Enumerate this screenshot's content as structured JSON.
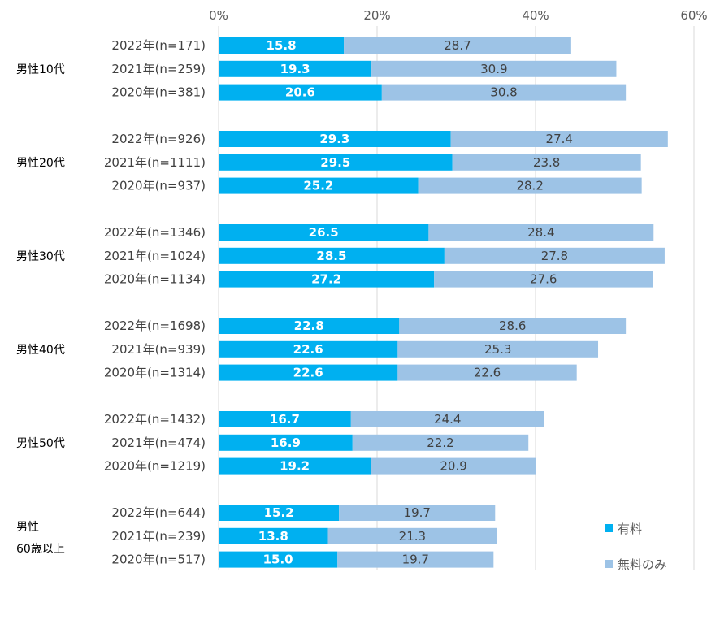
{
  "chart_data": {
    "type": "bar",
    "orientation": "horizontal",
    "stacked": true,
    "title": "",
    "xlabel": "",
    "ylabel": "",
    "xlim": [
      0,
      60
    ],
    "x_ticks": [
      "0%",
      "20%",
      "40%",
      "60%"
    ],
    "x_tick_values": [
      0,
      20,
      40,
      60
    ],
    "grid": true,
    "legend_position": "bottom-right",
    "colors": {
      "paid": "#00B0F0",
      "free": "#9DC3E6",
      "grid": "#D9D9D9"
    },
    "series": [
      {
        "key": "paid",
        "name": "有料"
      },
      {
        "key": "free",
        "name": "無料のみ"
      }
    ],
    "groups": [
      {
        "label": [
          "男性10代"
        ],
        "rows": [
          {
            "label": "2022年(n=171)",
            "paid": 15.8,
            "paid_text": "15.8",
            "free": 28.7,
            "free_text": "28.7"
          },
          {
            "label": "2021年(n=259)",
            "paid": 19.3,
            "paid_text": "19.3",
            "free": 30.9,
            "free_text": "30.9"
          },
          {
            "label": "2020年(n=381)",
            "paid": 20.6,
            "paid_text": "20.6",
            "free": 30.8,
            "free_text": "30.8"
          }
        ]
      },
      {
        "label": [
          "男性20代"
        ],
        "rows": [
          {
            "label": "2022年(n=926)",
            "paid": 29.3,
            "paid_text": "29.3",
            "free": 27.4,
            "free_text": "27.4"
          },
          {
            "label": "2021年(n=1111)",
            "paid": 29.5,
            "paid_text": "29.5",
            "free": 23.8,
            "free_text": "23.8"
          },
          {
            "label": "2020年(n=937)",
            "paid": 25.2,
            "paid_text": "25.2",
            "free": 28.2,
            "free_text": "28.2"
          }
        ]
      },
      {
        "label": [
          "男性30代"
        ],
        "rows": [
          {
            "label": "2022年(n=1346)",
            "paid": 26.5,
            "paid_text": "26.5",
            "free": 28.4,
            "free_text": "28.4"
          },
          {
            "label": "2021年(n=1024)",
            "paid": 28.5,
            "paid_text": "28.5",
            "free": 27.8,
            "free_text": "27.8"
          },
          {
            "label": "2020年(n=1134)",
            "paid": 27.2,
            "paid_text": "27.2",
            "free": 27.6,
            "free_text": "27.6"
          }
        ]
      },
      {
        "label": [
          "男性40代"
        ],
        "rows": [
          {
            "label": "2022年(n=1698)",
            "paid": 22.8,
            "paid_text": "22.8",
            "free": 28.6,
            "free_text": "28.6"
          },
          {
            "label": "2021年(n=939)",
            "paid": 22.6,
            "paid_text": "22.6",
            "free": 25.3,
            "free_text": "25.3"
          },
          {
            "label": "2020年(n=1314)",
            "paid": 22.6,
            "paid_text": "22.6",
            "free": 22.6,
            "free_text": "22.6"
          }
        ]
      },
      {
        "label": [
          "男性50代"
        ],
        "rows": [
          {
            "label": "2022年(n=1432)",
            "paid": 16.7,
            "paid_text": "16.7",
            "free": 24.4,
            "free_text": "24.4"
          },
          {
            "label": "2021年(n=474)",
            "paid": 16.9,
            "paid_text": "16.9",
            "free": 22.2,
            "free_text": "22.2"
          },
          {
            "label": "2020年(n=1219)",
            "paid": 19.2,
            "paid_text": "19.2",
            "free": 20.9,
            "free_text": "20.9"
          }
        ]
      },
      {
        "label": [
          "男性",
          "60歳以上"
        ],
        "rows": [
          {
            "label": "2022年(n=644)",
            "paid": 15.2,
            "paid_text": "15.2",
            "free": 19.7,
            "free_text": "19.7"
          },
          {
            "label": "2021年(n=239)",
            "paid": 13.8,
            "paid_text": "13.8",
            "free": 21.3,
            "free_text": "21.3"
          },
          {
            "label": "2020年(n=517)",
            "paid": 15.0,
            "paid_text": "15.0",
            "free": 19.7,
            "free_text": "19.7"
          }
        ]
      }
    ]
  }
}
